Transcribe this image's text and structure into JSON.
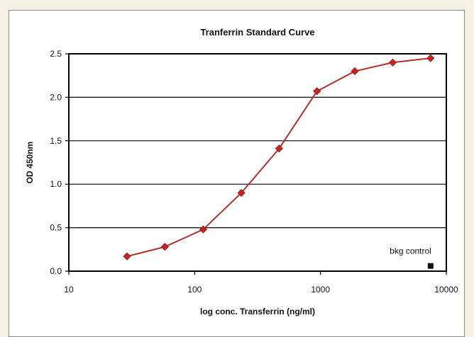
{
  "chart_data": {
    "type": "line",
    "title": "Tranferrin Standard Curve",
    "xlabel": "log conc. Transferrin (ng/ml)",
    "ylabel": "OD 450nm",
    "xscale": "log",
    "xlim": [
      10,
      10000
    ],
    "ylim": [
      0.0,
      2.5
    ],
    "x_ticks": [
      10,
      100,
      1000,
      10000
    ],
    "x_tick_labels": [
      "10",
      "100",
      "1000",
      "10000"
    ],
    "y_ticks": [
      0.0,
      0.5,
      1.0,
      1.5,
      2.0,
      2.5
    ],
    "y_tick_labels": [
      "0.0",
      "0.5",
      "1.0",
      "1.5",
      "2.0",
      "2.5"
    ],
    "grid": "horizontal",
    "legend": "none",
    "series": [
      {
        "x": [
          29,
          58,
          117,
          235,
          469,
          938,
          1875,
          3750,
          7500
        ],
        "y": [
          0.17,
          0.28,
          0.48,
          0.9,
          1.41,
          2.07,
          2.3,
          2.4,
          2.45
        ],
        "color": "#b03030",
        "marker": "diamond",
        "marker_color": "#cc2222"
      }
    ],
    "annotations": [
      {
        "text": "bkg control",
        "x": 7500,
        "y": 0.06,
        "marker": "square",
        "color": "#111111"
      }
    ]
  }
}
